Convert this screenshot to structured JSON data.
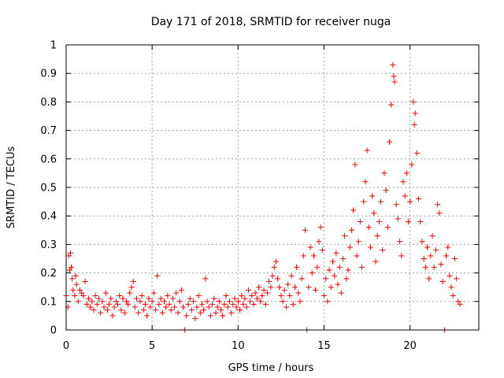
{
  "chart_data": {
    "type": "scatter",
    "title": "Day 171 of 2018, SRMTID for receiver nuga",
    "xlabel": "GPS time / hours",
    "ylabel": "SRMTID / TECUs",
    "xlim": [
      0,
      24
    ],
    "ylim": [
      0,
      1
    ],
    "grid": true,
    "marker": "+",
    "color": "#ff0000",
    "x_ticks": [
      0,
      5,
      10,
      15,
      20
    ],
    "x_tick_labels": [
      "0",
      "5",
      "10",
      "15",
      "20"
    ],
    "y_ticks": [
      0,
      0.1,
      0.2,
      0.3,
      0.4,
      0.5,
      0.6,
      0.7,
      0.8,
      0.9,
      1
    ],
    "y_tick_labels": [
      "0",
      "0.1",
      "0.2",
      "0.3",
      "0.4",
      "0.5",
      "0.6",
      "0.7",
      "0.8",
      "0.9",
      "1"
    ],
    "series": [
      {
        "name": "SRMTID",
        "points": [
          [
            0.0,
            0.12
          ],
          [
            0.1,
            0.08
          ],
          [
            0.15,
            0.26
          ],
          [
            0.2,
            0.21
          ],
          [
            0.25,
            0.27
          ],
          [
            0.3,
            0.22
          ],
          [
            0.35,
            0.18
          ],
          [
            0.4,
            0.14
          ],
          [
            0.5,
            0.12
          ],
          [
            0.55,
            0.19
          ],
          [
            0.6,
            0.16
          ],
          [
            0.7,
            0.1
          ],
          [
            0.8,
            0.14
          ],
          [
            0.9,
            0.13
          ],
          [
            1.0,
            0.12
          ],
          [
            1.1,
            0.17
          ],
          [
            1.2,
            0.09
          ],
          [
            1.3,
            0.11
          ],
          [
            1.4,
            0.08
          ],
          [
            1.5,
            0.1
          ],
          [
            1.6,
            0.07
          ],
          [
            1.7,
            0.12
          ],
          [
            1.8,
            0.09
          ],
          [
            1.9,
            0.11
          ],
          [
            2.0,
            0.06
          ],
          [
            2.1,
            0.1
          ],
          [
            2.2,
            0.08
          ],
          [
            2.3,
            0.13
          ],
          [
            2.4,
            0.07
          ],
          [
            2.5,
            0.09
          ],
          [
            2.6,
            0.11
          ],
          [
            2.7,
            0.05
          ],
          [
            2.8,
            0.08
          ],
          [
            2.9,
            0.1
          ],
          [
            3.0,
            0.09
          ],
          [
            3.1,
            0.12
          ],
          [
            3.2,
            0.07
          ],
          [
            3.3,
            0.11
          ],
          [
            3.4,
            0.06
          ],
          [
            3.5,
            0.1
          ],
          [
            3.6,
            0.09
          ],
          [
            3.7,
            0.13
          ],
          [
            3.8,
            0.15
          ],
          [
            3.9,
            0.17
          ],
          [
            4.0,
            0.08
          ],
          [
            4.1,
            0.11
          ],
          [
            4.2,
            0.06
          ],
          [
            4.3,
            0.1
          ],
          [
            4.4,
            0.12
          ],
          [
            4.5,
            0.07
          ],
          [
            4.6,
            0.09
          ],
          [
            4.7,
            0.05
          ],
          [
            4.8,
            0.11
          ],
          [
            4.9,
            0.08
          ],
          [
            5.0,
            0.1
          ],
          [
            5.1,
            0.13
          ],
          [
            5.2,
            0.07
          ],
          [
            5.3,
            0.19
          ],
          [
            5.4,
            0.09
          ],
          [
            5.5,
            0.11
          ],
          [
            5.6,
            0.06
          ],
          [
            5.7,
            0.1
          ],
          [
            5.8,
            0.08
          ],
          [
            5.9,
            0.12
          ],
          [
            6.0,
            0.09
          ],
          [
            6.1,
            0.07
          ],
          [
            6.2,
            0.11
          ],
          [
            6.3,
            0.08
          ],
          [
            6.4,
            0.13
          ],
          [
            6.5,
            0.06
          ],
          [
            6.6,
            0.1
          ],
          [
            6.7,
            0.14
          ],
          [
            6.8,
            0.08
          ],
          [
            6.9,
            0.0
          ],
          [
            7.0,
            0.05
          ],
          [
            7.1,
            0.09
          ],
          [
            7.2,
            0.11
          ],
          [
            7.3,
            0.07
          ],
          [
            7.4,
            0.1
          ],
          [
            7.5,
            0.04
          ],
          [
            7.6,
            0.08
          ],
          [
            7.7,
            0.12
          ],
          [
            7.8,
            0.06
          ],
          [
            7.9,
            0.09
          ],
          [
            8.0,
            0.07
          ],
          [
            8.1,
            0.18
          ],
          [
            8.2,
            0.1
          ],
          [
            8.3,
            0.08
          ],
          [
            8.4,
            0.05
          ],
          [
            8.5,
            0.09
          ],
          [
            8.6,
            0.11
          ],
          [
            8.7,
            0.06
          ],
          [
            8.8,
            0.08
          ],
          [
            8.9,
            0.1
          ],
          [
            9.0,
            0.07
          ],
          [
            9.1,
            0.05
          ],
          [
            9.2,
            0.09
          ],
          [
            9.3,
            0.12
          ],
          [
            9.4,
            0.08
          ],
          [
            9.5,
            0.1
          ],
          [
            9.6,
            0.06
          ],
          [
            9.7,
            0.09
          ],
          [
            9.8,
            0.11
          ],
          [
            9.9,
            0.08
          ],
          [
            10.0,
            0.1
          ],
          [
            10.1,
            0.07
          ],
          [
            10.2,
            0.12
          ],
          [
            10.3,
            0.09
          ],
          [
            10.4,
            0.11
          ],
          [
            10.5,
            0.08
          ],
          [
            10.6,
            0.14
          ],
          [
            10.7,
            0.1
          ],
          [
            10.8,
            0.12
          ],
          [
            10.9,
            0.09
          ],
          [
            11.0,
            0.13
          ],
          [
            11.1,
            0.11
          ],
          [
            11.2,
            0.15
          ],
          [
            11.3,
            0.1
          ],
          [
            11.4,
            0.12
          ],
          [
            11.5,
            0.14
          ],
          [
            11.6,
            0.09
          ],
          [
            11.7,
            0.13
          ],
          [
            11.8,
            0.17
          ],
          [
            11.9,
            0.15
          ],
          [
            12.0,
            0.19
          ],
          [
            12.1,
            0.22
          ],
          [
            12.2,
            0.24
          ],
          [
            12.3,
            0.18
          ],
          [
            12.4,
            0.15
          ],
          [
            12.5,
            0.12
          ],
          [
            12.6,
            0.1
          ],
          [
            12.7,
            0.14
          ],
          [
            12.8,
            0.08
          ],
          [
            12.9,
            0.16
          ],
          [
            13.0,
            0.12
          ],
          [
            13.1,
            0.19
          ],
          [
            13.2,
            0.09
          ],
          [
            13.3,
            0.15
          ],
          [
            13.4,
            0.22
          ],
          [
            13.5,
            0.13
          ],
          [
            13.6,
            0.1
          ],
          [
            13.7,
            0.18
          ],
          [
            13.8,
            0.26
          ],
          [
            13.9,
            0.35
          ],
          [
            14.0,
            0.0
          ],
          [
            14.1,
            0.15
          ],
          [
            14.2,
            0.29
          ],
          [
            14.3,
            0.2
          ],
          [
            14.4,
            0.26
          ],
          [
            14.5,
            0.14
          ],
          [
            14.6,
            0.22
          ],
          [
            14.7,
            0.31
          ],
          [
            14.8,
            0.36
          ],
          [
            14.9,
            0.28
          ],
          [
            15.0,
            0.12
          ],
          [
            15.1,
            0.18
          ],
          [
            15.2,
            0.1
          ],
          [
            15.3,
            0.21
          ],
          [
            15.4,
            0.15
          ],
          [
            15.5,
            0.24
          ],
          [
            15.6,
            0.19
          ],
          [
            15.7,
            0.27
          ],
          [
            15.8,
            0.16
          ],
          [
            15.9,
            0.22
          ],
          [
            16.0,
            0.13
          ],
          [
            16.1,
            0.25
          ],
          [
            16.2,
            0.33
          ],
          [
            16.3,
            0.18
          ],
          [
            16.4,
            0.21
          ],
          [
            16.5,
            0.29
          ],
          [
            16.6,
            0.35
          ],
          [
            16.7,
            0.42
          ],
          [
            16.8,
            0.58
          ],
          [
            16.9,
            0.26
          ],
          [
            17.0,
            0.31
          ],
          [
            17.1,
            0.38
          ],
          [
            17.2,
            0.22
          ],
          [
            17.3,
            0.45
          ],
          [
            17.4,
            0.52
          ],
          [
            17.5,
            0.63
          ],
          [
            17.6,
            0.36
          ],
          [
            17.7,
            0.29
          ],
          [
            17.8,
            0.47
          ],
          [
            17.9,
            0.41
          ],
          [
            18.0,
            0.24
          ],
          [
            18.1,
            0.33
          ],
          [
            18.2,
            0.38
          ],
          [
            18.3,
            0.45
          ],
          [
            18.4,
            0.28
          ],
          [
            18.5,
            0.55
          ],
          [
            18.6,
            0.49
          ],
          [
            18.7,
            0.36
          ],
          [
            18.8,
            0.66
          ],
          [
            18.9,
            0.79
          ],
          [
            19.0,
            0.93
          ],
          [
            19.05,
            0.89
          ],
          [
            19.1,
            0.87
          ],
          [
            19.2,
            0.44
          ],
          [
            19.3,
            0.39
          ],
          [
            19.4,
            0.31
          ],
          [
            19.5,
            0.26
          ],
          [
            19.6,
            0.52
          ],
          [
            19.7,
            0.47
          ],
          [
            19.8,
            0.55
          ],
          [
            19.9,
            0.38
          ],
          [
            20.0,
            0.45
          ],
          [
            20.1,
            0.58
          ],
          [
            20.2,
            0.8
          ],
          [
            20.25,
            0.72
          ],
          [
            20.3,
            0.76
          ],
          [
            20.4,
            0.62
          ],
          [
            20.5,
            0.46
          ],
          [
            20.6,
            0.38
          ],
          [
            20.7,
            0.31
          ],
          [
            20.8,
            0.25
          ],
          [
            20.9,
            0.22
          ],
          [
            21.0,
            0.29
          ],
          [
            21.1,
            0.18
          ],
          [
            21.2,
            0.26
          ],
          [
            21.3,
            0.33
          ],
          [
            21.4,
            0.22
          ],
          [
            21.5,
            0.28
          ],
          [
            21.6,
            0.44
          ],
          [
            21.7,
            0.41
          ],
          [
            21.8,
            0.23
          ],
          [
            21.9,
            0.17
          ],
          [
            22.0,
            0.0
          ],
          [
            22.1,
            0.26
          ],
          [
            22.2,
            0.29
          ],
          [
            22.3,
            0.19
          ],
          [
            22.4,
            0.15
          ],
          [
            22.5,
            0.12
          ],
          [
            22.6,
            0.25
          ],
          [
            22.7,
            0.18
          ],
          [
            22.8,
            0.1
          ],
          [
            22.9,
            0.09
          ]
        ]
      }
    ]
  }
}
